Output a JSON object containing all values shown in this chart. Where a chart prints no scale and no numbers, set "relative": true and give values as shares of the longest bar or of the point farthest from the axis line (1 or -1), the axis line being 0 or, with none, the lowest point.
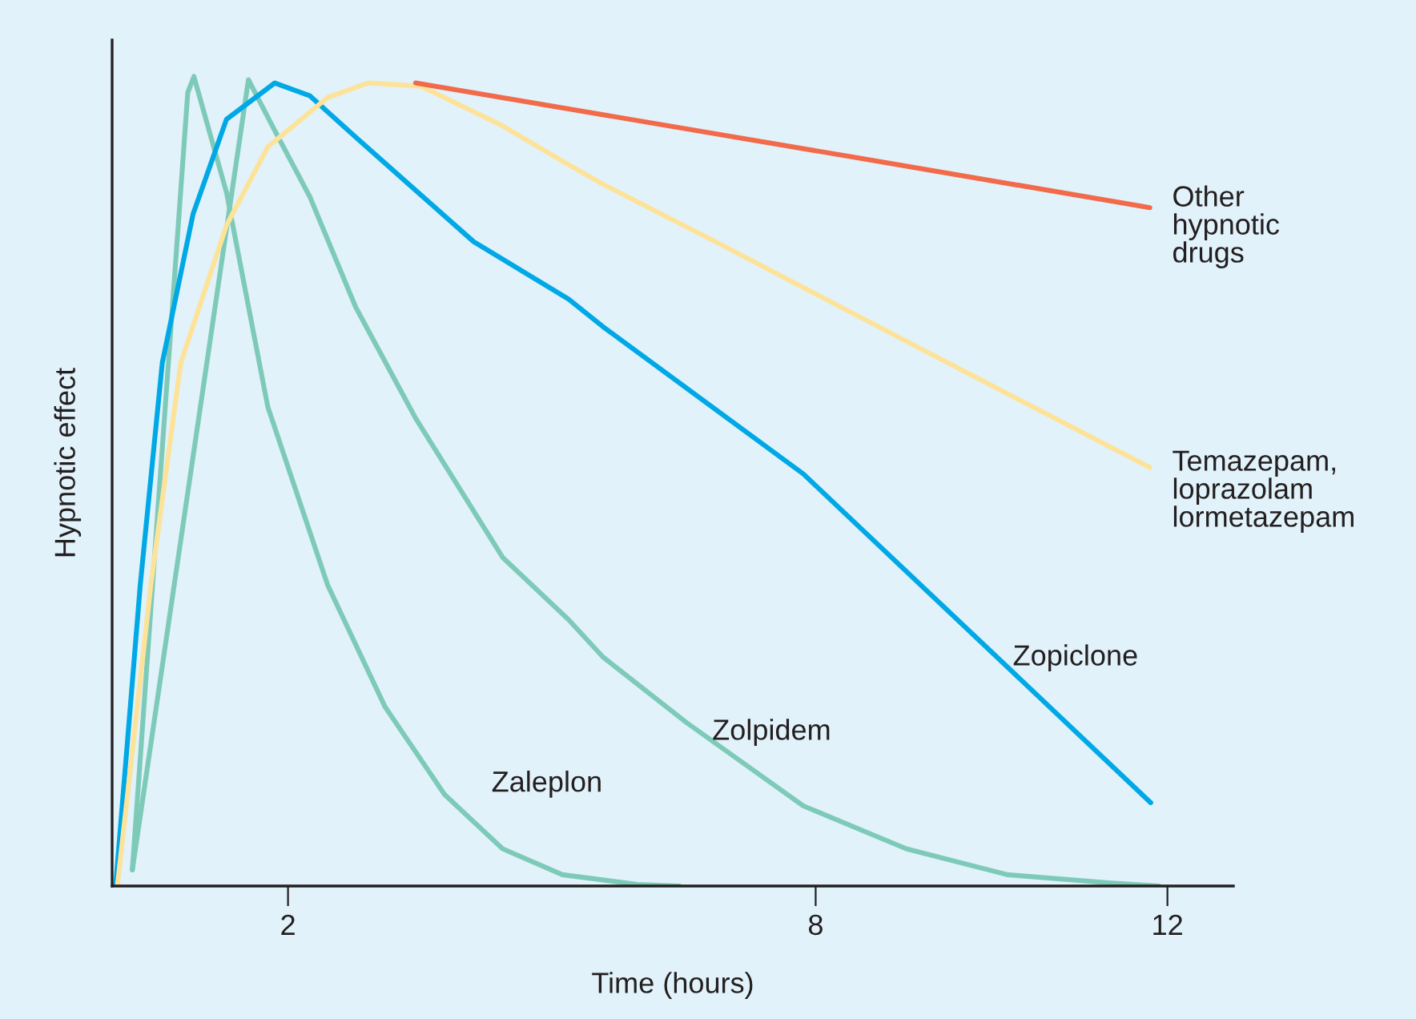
{
  "chart_data": {
    "type": "line",
    "xlabel": "Time (hours)",
    "ylabel": "Hypnotic effect",
    "relative": true,
    "xlim": [
      0,
      12.75
    ],
    "xticks": [
      2,
      8,
      12
    ],
    "grid": false,
    "legend": false,
    "tick_labels": "x",
    "series": [
      {
        "name": "Zaleplon",
        "color": "#7ecab8",
        "x": [
          0.23,
          0.55,
          0.86,
          0.93,
          1.3,
          1.77,
          2.45,
          3.1,
          3.78,
          4.44,
          5.12,
          5.97,
          6.45
        ],
        "values": [
          0.02,
          0.51,
          0.98,
          1.0,
          0.857,
          0.592,
          0.372,
          0.222,
          0.113,
          0.046,
          0.014,
          0.002,
          0
        ]
      },
      {
        "name": "Zolpidem",
        "color": "#7ecab8",
        "x": [
          0.23,
          1.55,
          1.85,
          2.25,
          2.77,
          3.45,
          4.44,
          5.19,
          5.58,
          6.53,
          7.86,
          9.03,
          10.18,
          11.33,
          11.9
        ],
        "values": [
          0.02,
          0.996,
          0.933,
          0.851,
          0.715,
          0.578,
          0.406,
          0.329,
          0.283,
          0.202,
          0.099,
          0.046,
          0.014,
          0.004,
          0
        ]
      },
      {
        "name": "Zopiclone",
        "color": "#00a8e6",
        "x": [
          0.04,
          0.32,
          0.57,
          0.92,
          1.3,
          1.85,
          2.25,
          2.77,
          4.11,
          5.19,
          5.58,
          7.86,
          11.81
        ],
        "values": [
          0,
          0.372,
          0.646,
          0.83,
          0.947,
          0.992,
          0.976,
          0.925,
          0.796,
          0.725,
          0.691,
          0.509,
          0.103
        ]
      },
      {
        "name": "Temazepam,\nloprazolam\nlormetazepam",
        "color": "#fde39a",
        "x": [
          0.06,
          0.44,
          0.78,
          1.3,
          1.77,
          2.45,
          2.91,
          3.51,
          4.44,
          5.19,
          5.58,
          6.86,
          9.03,
          11.8
        ],
        "values": [
          0,
          0.372,
          0.646,
          0.816,
          0.913,
          0.974,
          0.992,
          0.988,
          0.939,
          0.891,
          0.867,
          0.796,
          0.673,
          0.517
        ]
      },
      {
        "name": "Other\nhypnotic\ndrugs",
        "color": "#f26a4a",
        "x": [
          3.45,
          8.45,
          11.8
        ],
        "values": [
          0.992,
          0.9,
          0.838
        ]
      }
    ]
  }
}
